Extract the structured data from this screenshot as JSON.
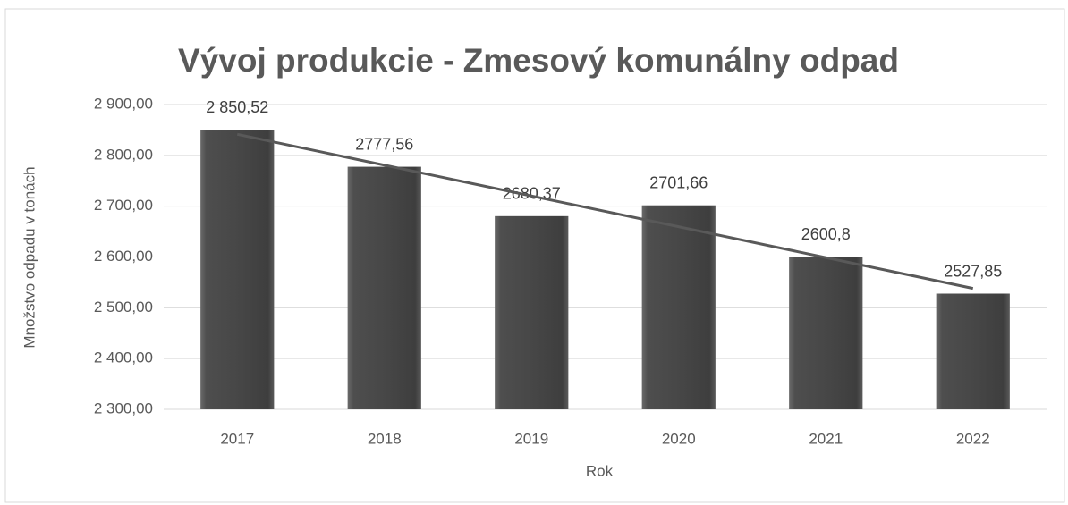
{
  "chart_data": {
    "type": "bar",
    "title": "Vývoj produkcie - Zmesový komunálny odpad",
    "x_label": "Rok",
    "y_label": "Množstvo odpadu v tonách",
    "categories": [
      "2017",
      "2018",
      "2019",
      "2020",
      "2021",
      "2022"
    ],
    "values": [
      2850.52,
      2777.56,
      2680.37,
      2701.66,
      2600.8,
      2527.85
    ],
    "value_labels": [
      "2 850,52",
      "2777,56",
      "2680,37",
      "2701,66",
      "2600,8",
      "2527,85"
    ],
    "color": "#4a4a4a",
    "trendline": "linear",
    "trendline_color": "#595959",
    "ylim": [
      2300,
      2900
    ],
    "yticks": [
      {
        "value": 2300,
        "label": "2 300,00"
      },
      {
        "value": 2400,
        "label": "2 400,00"
      },
      {
        "value": 2500,
        "label": "2 500,00"
      },
      {
        "value": 2600,
        "label": "2 600,00"
      },
      {
        "value": 2700,
        "label": "2 700,00"
      },
      {
        "value": 2800,
        "label": "2 800,00"
      },
      {
        "value": 2900,
        "label": "2 900,00"
      }
    ],
    "grid": true
  }
}
